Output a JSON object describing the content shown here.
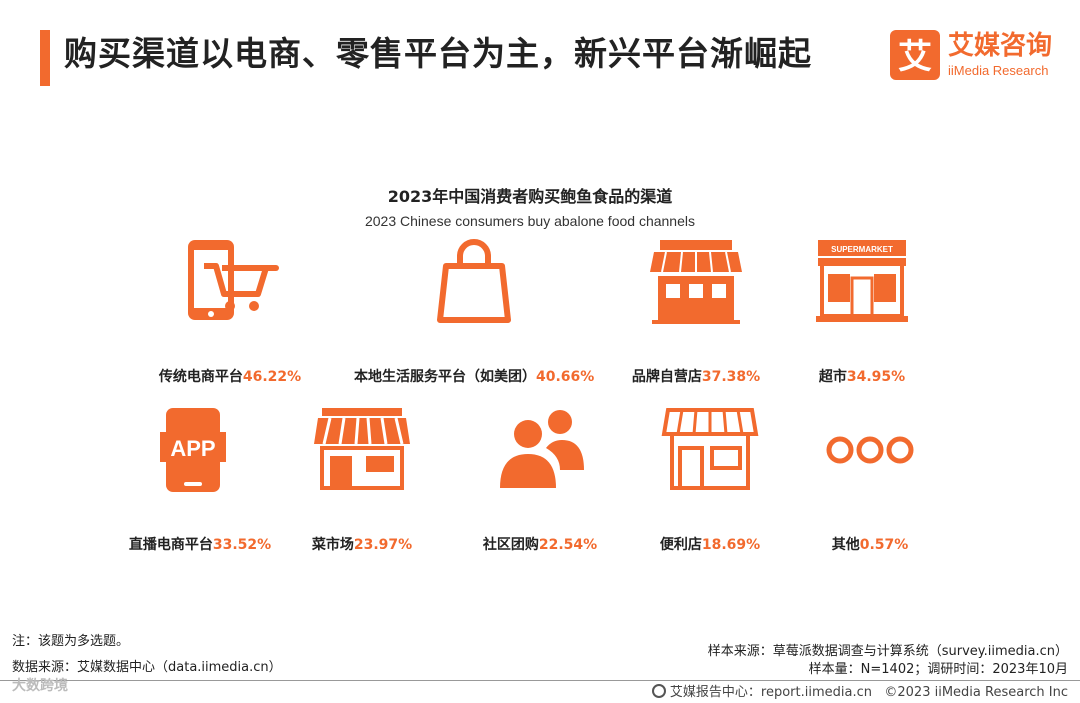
{
  "header": {
    "title": "购买渠道以电商、零售平台为主，新兴平台渐崛起",
    "logo_cn": "艾媒咨询",
    "logo_en": "iiMedia Research",
    "logo_mark": "艾"
  },
  "chart_data": {
    "type": "table",
    "title": "2023年中国消费者购买鲍鱼食品的渠道",
    "subtitle": "2023 Chinese consumers buy abalone food channels",
    "items": [
      {
        "name": "传统电商平台",
        "value": 46.22,
        "display": "46.22%",
        "icon": "mobile-cart-icon"
      },
      {
        "name": "本地生活服务平台（如美团）",
        "value": 40.66,
        "display": "40.66%",
        "icon": "shopping-bag-icon"
      },
      {
        "name": "品牌自营店",
        "value": 37.38,
        "display": "37.38%",
        "icon": "storefront-icon"
      },
      {
        "name": "超市",
        "value": 34.95,
        "display": "34.95%",
        "icon": "supermarket-icon"
      },
      {
        "name": "直播电商平台",
        "value": 33.52,
        "display": "33.52%",
        "icon": "app-phone-icon"
      },
      {
        "name": "菜市场",
        "value": 23.97,
        "display": "23.97%",
        "icon": "market-stall-icon"
      },
      {
        "name": "社区团购",
        "value": 22.54,
        "display": "22.54%",
        "icon": "people-group-icon"
      },
      {
        "name": "便利店",
        "value": 18.69,
        "display": "18.69%",
        "icon": "convenience-store-icon"
      },
      {
        "name": "其他",
        "value": 0.57,
        "display": "0.57%",
        "icon": "ellipsis-icon"
      }
    ],
    "icon_labels": {
      "supermarket": "SUPERMARKET",
      "app": "APP"
    },
    "accent_color": "#f26a2e"
  },
  "notes": {
    "note": "注：该题为多选题。",
    "data_source": "数据来源：艾媒数据中心（data.iimedia.cn）",
    "sample_source": "样本来源：草莓派数据调查与计算系统（survey.iimedia.cn）",
    "sample_info": "样本量：N=1402；调研时间：2023年10月"
  },
  "footer": {
    "watermark": "大数跨境",
    "report_center": "艾媒报告中心：report.iimedia.cn",
    "copyright": "©2023  iiMedia Research  Inc"
  }
}
